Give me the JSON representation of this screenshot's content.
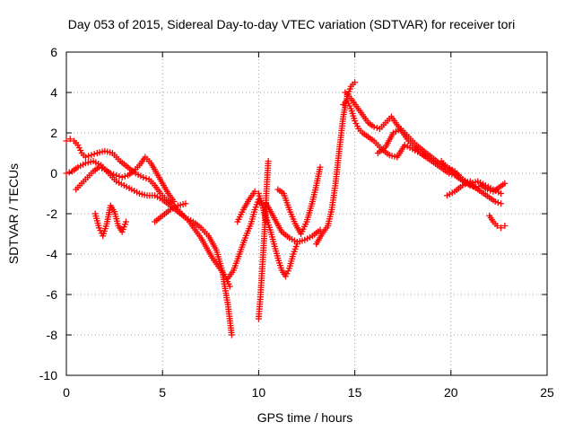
{
  "chart_data": {
    "type": "scatter",
    "title": "Day 053 of 2015, Sidereal Day-to-day VTEC variation (SDTVAR) for receiver tori",
    "xlabel": "GPS time / hours",
    "ylabel": "SDTVAR / TECUs",
    "xlim": [
      0,
      25
    ],
    "ylim": [
      -10,
      6
    ],
    "xticks": [
      "0",
      "5",
      "10",
      "15",
      "20",
      "25"
    ],
    "yticks": [
      "-10",
      "-8",
      "-6",
      "-4",
      "-2",
      "0",
      "2",
      "4",
      "6"
    ],
    "grid": true,
    "marker": "+",
    "color": "#ff0000",
    "series": [
      {
        "x": [
          0.0,
          0.2,
          0.4,
          0.6,
          0.8,
          1.0,
          1.3,
          1.6,
          2.0,
          2.4,
          2.8,
          3.2,
          3.6,
          4.0,
          4.3,
          4.6,
          4.9,
          5.2,
          5.5,
          5.8,
          6.1,
          6.4,
          6.7,
          7.0,
          7.3,
          7.6,
          7.9,
          8.2,
          8.5
        ],
        "y": [
          1.6,
          1.7,
          1.6,
          1.4,
          1.0,
          0.8,
          0.9,
          1.0,
          1.1,
          1.0,
          0.6,
          0.3,
          0.0,
          -0.2,
          -0.3,
          -0.6,
          -1.0,
          -1.3,
          -1.5,
          -1.8,
          -2.1,
          -2.4,
          -2.8,
          -3.2,
          -3.7,
          -4.2,
          -4.6,
          -5.0,
          -5.6
        ]
      },
      {
        "x": [
          0.0,
          0.3,
          0.6,
          1.0,
          1.4,
          1.8,
          2.2,
          2.6,
          3.0,
          3.4,
          3.8,
          4.2,
          4.6,
          5.0,
          5.4,
          5.8,
          6.2,
          6.6,
          7.0,
          7.4,
          7.8,
          8.1,
          8.4,
          8.6
        ],
        "y": [
          0.0,
          0.1,
          0.3,
          0.5,
          0.6,
          0.4,
          0.0,
          -0.4,
          -0.6,
          -0.8,
          -1.0,
          -1.1,
          -1.1,
          -1.3,
          -1.6,
          -1.9,
          -2.2,
          -2.4,
          -2.7,
          -3.1,
          -3.8,
          -4.8,
          -6.5,
          -8.0
        ]
      },
      {
        "x": [
          0.5,
          0.8,
          1.1,
          1.4,
          1.7,
          2.0,
          2.3,
          2.6,
          2.9,
          3.2,
          3.5,
          3.8,
          4.1,
          4.4,
          4.7,
          5.0,
          5.3,
          5.6
        ],
        "y": [
          -0.8,
          -0.5,
          -0.2,
          0.1,
          0.3,
          0.2,
          0.0,
          -0.1,
          -0.2,
          -0.1,
          0.1,
          0.4,
          0.8,
          0.5,
          0.0,
          -0.5,
          -1.0,
          -1.4
        ]
      },
      {
        "x": [
          1.5,
          1.7,
          1.9,
          2.1,
          2.3,
          2.5,
          2.7,
          2.9,
          3.1
        ],
        "y": [
          -2.0,
          -2.7,
          -3.1,
          -2.5,
          -1.6,
          -1.9,
          -2.6,
          -2.9,
          -2.4
        ]
      },
      {
        "x": [
          4.6,
          5.0,
          5.4,
          5.8,
          6.2
        ],
        "y": [
          -2.4,
          -2.1,
          -1.8,
          -1.6,
          -1.5
        ]
      },
      {
        "x": [
          8.4,
          8.7,
          9.0,
          9.3,
          9.6,
          9.8,
          10.0,
          10.2,
          10.4
        ],
        "y": [
          -5.2,
          -4.8,
          -4.0,
          -3.2,
          -2.5,
          -1.8,
          -1.3,
          -1.6,
          -2.4
        ]
      },
      {
        "x": [
          8.9,
          9.2,
          9.5,
          9.8,
          10.0,
          10.2,
          10.4,
          10.6,
          10.8,
          11.0,
          11.2,
          11.4,
          11.6,
          11.8,
          12.0
        ],
        "y": [
          -2.4,
          -1.8,
          -1.3,
          -0.9,
          -1.0,
          -1.6,
          -2.2,
          -2.8,
          -3.5,
          -4.2,
          -4.8,
          -5.1,
          -4.7,
          -4.0,
          -3.5
        ]
      },
      {
        "x": [
          10.0,
          10.1,
          10.2,
          10.3,
          10.4,
          10.5
        ],
        "y": [
          -7.2,
          -6.0,
          -4.5,
          -3.0,
          -1.0,
          0.6
        ]
      },
      {
        "x": [
          10.4,
          10.8,
          11.2,
          11.6,
          12.0,
          12.4,
          12.8,
          13.2
        ],
        "y": [
          -1.5,
          -2.2,
          -2.9,
          -3.2,
          -3.4,
          -3.3,
          -3.1,
          -2.8
        ]
      },
      {
        "x": [
          11.0,
          11.3,
          11.6,
          11.9,
          12.2,
          12.5,
          12.8,
          13.0,
          13.2
        ],
        "y": [
          -0.8,
          -1.0,
          -1.8,
          -2.5,
          -3.0,
          -2.4,
          -1.4,
          -0.6,
          0.3
        ]
      },
      {
        "x": [
          13.0,
          13.3,
          13.6,
          13.8,
          14.0,
          14.2,
          14.4,
          14.6,
          14.8,
          15.0
        ],
        "y": [
          -3.5,
          -3.0,
          -2.6,
          -1.8,
          -0.5,
          1.2,
          2.8,
          3.8,
          4.3,
          4.5
        ]
      },
      {
        "x": [
          14.4,
          14.6,
          14.8,
          15.0,
          15.2,
          15.4,
          15.7,
          16.0,
          16.4,
          16.8,
          17.2,
          17.6,
          18.0,
          18.4,
          18.8
        ],
        "y": [
          3.4,
          3.6,
          3.2,
          2.6,
          2.2,
          2.0,
          1.8,
          1.6,
          1.2,
          0.9,
          0.8,
          1.4,
          1.2,
          1.0,
          0.8
        ]
      },
      {
        "x": [
          14.5,
          14.8,
          15.1,
          15.4,
          15.7,
          16.0,
          16.3,
          16.6,
          16.9,
          17.2,
          17.5,
          17.8,
          18.1,
          18.4,
          18.7,
          19.0,
          19.3,
          19.6,
          19.9,
          20.2,
          20.5,
          20.8,
          21.1,
          21.4,
          21.7,
          22.0,
          22.3,
          22.6
        ],
        "y": [
          4.0,
          3.7,
          3.3,
          2.9,
          2.5,
          2.3,
          2.2,
          2.5,
          2.8,
          2.4,
          2.0,
          1.6,
          1.3,
          1.0,
          0.8,
          0.6,
          0.4,
          0.2,
          0.0,
          -0.1,
          -0.3,
          -0.5,
          -0.6,
          -0.8,
          -1.0,
          -1.2,
          -1.4,
          -1.5
        ]
      },
      {
        "x": [
          16.2,
          16.6,
          17.0,
          17.4,
          17.8,
          18.2,
          18.6,
          19.0,
          19.4,
          19.8,
          20.2,
          20.6,
          21.0,
          21.4,
          21.8,
          22.2,
          22.6
        ],
        "y": [
          1.0,
          1.3,
          2.0,
          2.2,
          1.8,
          1.4,
          1.1,
          0.8,
          0.5,
          0.3,
          0.1,
          -0.3,
          -0.5,
          -0.4,
          -0.6,
          -0.8,
          -1.0
        ]
      },
      {
        "x": [
          19.5,
          19.8,
          20.1,
          20.4,
          20.7,
          21.0,
          21.3,
          21.6,
          21.9,
          22.2,
          22.5,
          22.8
        ],
        "y": [
          0.6,
          0.3,
          0.1,
          -0.1,
          -0.4,
          -0.6,
          -0.7,
          -0.6,
          -0.8,
          -0.9,
          -0.7,
          -0.5
        ]
      },
      {
        "x": [
          19.8,
          20.2,
          20.6,
          21.0
        ],
        "y": [
          -1.1,
          -0.9,
          -0.6,
          -0.4
        ]
      },
      {
        "x": [
          22.0,
          22.2,
          22.4,
          22.6,
          22.8
        ],
        "y": [
          -2.1,
          -2.4,
          -2.6,
          -2.7,
          -2.6
        ]
      }
    ]
  }
}
